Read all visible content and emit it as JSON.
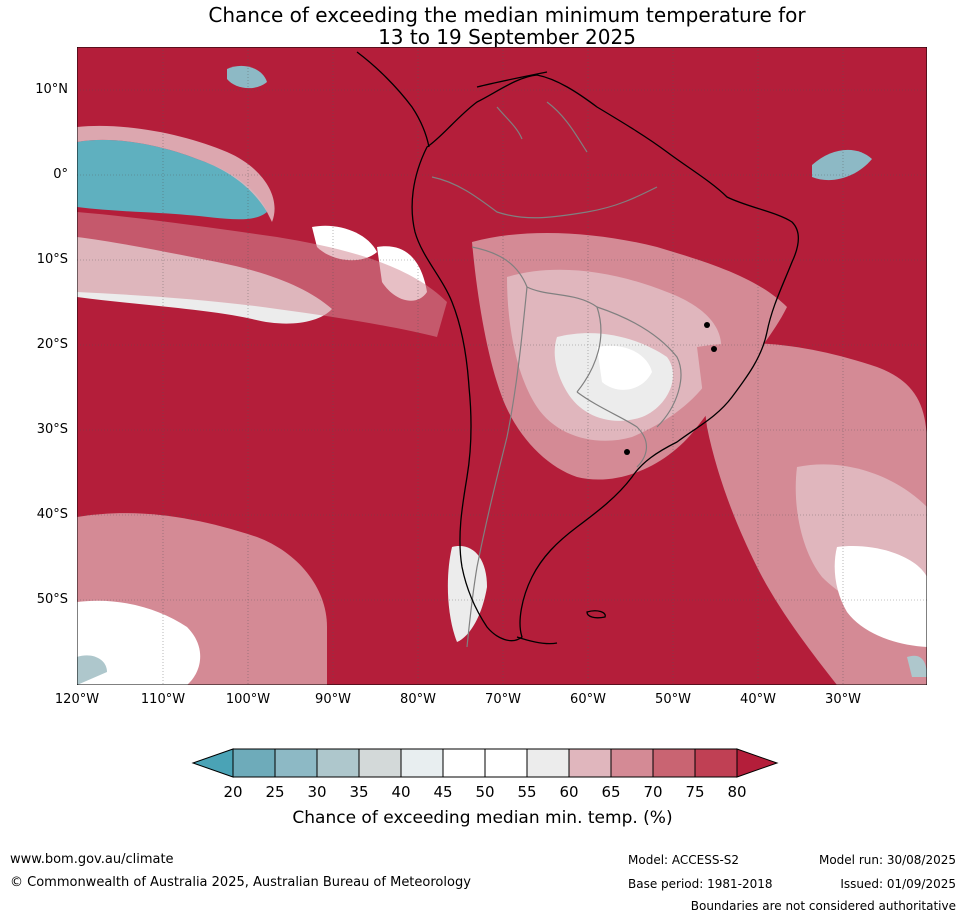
{
  "title": {
    "line1": "Chance of exceeding the median minimum temperature for",
    "line2": "13 to 19 September 2025"
  },
  "map": {
    "lat_labels": [
      "10°N",
      "0°",
      "10°S",
      "20°S",
      "30°S",
      "40°S",
      "50°S"
    ],
    "lon_labels": [
      "120°W",
      "110°W",
      "100°W",
      "90°W",
      "80°W",
      "70°W",
      "60°W",
      "50°W",
      "40°W",
      "30°W"
    ],
    "base_color": "#b41e3a",
    "coast_color": "#000000",
    "border_color": "#808080"
  },
  "colorbar": {
    "ticks": [
      "20",
      "25",
      "30",
      "35",
      "40",
      "45",
      "50",
      "55",
      "60",
      "65",
      "70",
      "75",
      "80"
    ],
    "colors": [
      "#4aa3b6",
      "#6eabba",
      "#8db9c5",
      "#aec7cc",
      "#d3d9d9",
      "#e8eef0",
      "#ffffff",
      "#ffffff",
      "#ececec",
      "#e0b6bd",
      "#d48a95",
      "#c96472",
      "#c04054",
      "#b41e3a"
    ],
    "label": "Chance of exceeding median min. temp. (%)"
  },
  "footer": {
    "website": "www.bom.gov.au/climate",
    "copyright": "© Commonwealth of Australia 2025, Australian Bureau of Meteorology",
    "model": "Model: ACCESS-S2",
    "base_period": "Base period: 1981-2018",
    "model_run": "Model run: 30/08/2025",
    "issued": "Issued: 01/09/2025",
    "disclaimer": "Boundaries are not considered authoritative"
  }
}
